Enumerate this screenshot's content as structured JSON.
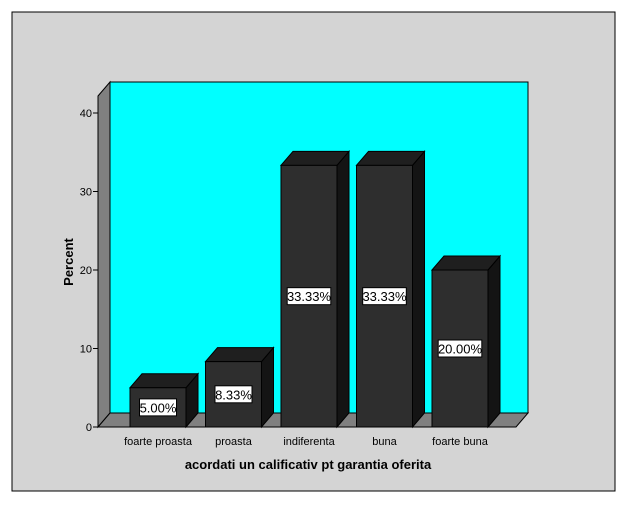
{
  "chart_data": {
    "type": "bar",
    "title": "",
    "xlabel": "acordati un calificativ pt garantia oferita",
    "ylabel": "Percent",
    "categories": [
      "foarte proasta",
      "proasta",
      "indiferenta",
      "buna",
      "foarte buna"
    ],
    "values": [
      5.0,
      8.33,
      33.33,
      33.33,
      20.0
    ],
    "data_labels": [
      "5.00%",
      "8.33%",
      "33.33%",
      "33.33%",
      "20.00%"
    ],
    "y_ticks": [
      0,
      10,
      20,
      30,
      40
    ],
    "ylim": [
      0,
      40
    ],
    "grid": false,
    "legend": "none",
    "style": "3d",
    "colors": {
      "outer_background": "#d4d4d4",
      "plot_background": "#00ffff",
      "bar_front": "#2e2e2e",
      "bar_top": "#1f1f1f",
      "bar_side": "#141414",
      "floor": "#808080",
      "left_wall": "#808080",
      "label_box": "#ffffff"
    }
  }
}
